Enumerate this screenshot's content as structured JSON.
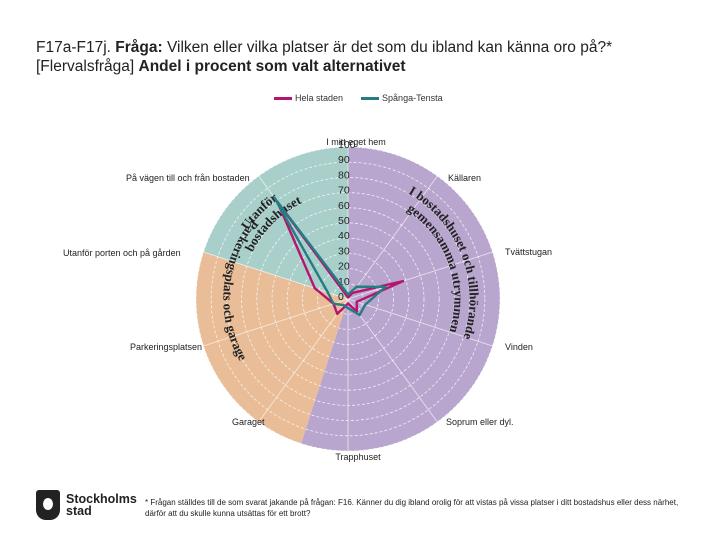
{
  "title": {
    "prefix": "F17a-F17j. ",
    "label": "Fråga:",
    "question": " Vilken eller vilka platser är det som du ibland kan känna oro på?*",
    "line2_plain": "[Flervalsfråga] ",
    "line2_bold": "Andel i procent som valt alternativet"
  },
  "chart_data": {
    "type": "radar",
    "categories": [
      "I mitt eget hem",
      "Källaren",
      "Tvättstugan",
      "Vinden",
      "Soprum eller dyl.",
      "Trapphuset",
      "Garaget",
      "Parkeringsplatsen",
      "Utanför porten och på gården",
      "På vägen till och från bostaden"
    ],
    "ticks": [
      "0",
      "10",
      "20",
      "30",
      "40",
      "50",
      "60",
      "70",
      "80",
      "90",
      "100"
    ],
    "rmax": 100,
    "series": [
      {
        "name": "Hela staden",
        "color": "#b5156e",
        "values": [
          1,
          5,
          38,
          6,
          10,
          3,
          12,
          10,
          23,
          79
        ]
      },
      {
        "name": "Spånga-Tensta",
        "color": "#257c82",
        "values": [
          3,
          10,
          26,
          12,
          13,
          6,
          5,
          10,
          14,
          82
        ]
      }
    ],
    "groups": [
      {
        "label": "I bostadshuset och tillhörande gemensamma utrymmen",
        "color": "#b9a6cf"
      },
      {
        "label": "Parkeringsplats och garage",
        "color": "#e8bd97"
      },
      {
        "label": "Utanför bostadshuset",
        "color": "#a9cfcb"
      }
    ]
  },
  "footer": {
    "logo_line1": "Stockholms",
    "logo_line2": "stad",
    "note": "* Frågan ställdes till de som svarat jakande på frågan: F16. Känner du dig ibland orolig för att vistas på vissa platser i ditt bostadshus eller dess närhet, därför att du skulle kunna utsättas för ett brott?"
  }
}
